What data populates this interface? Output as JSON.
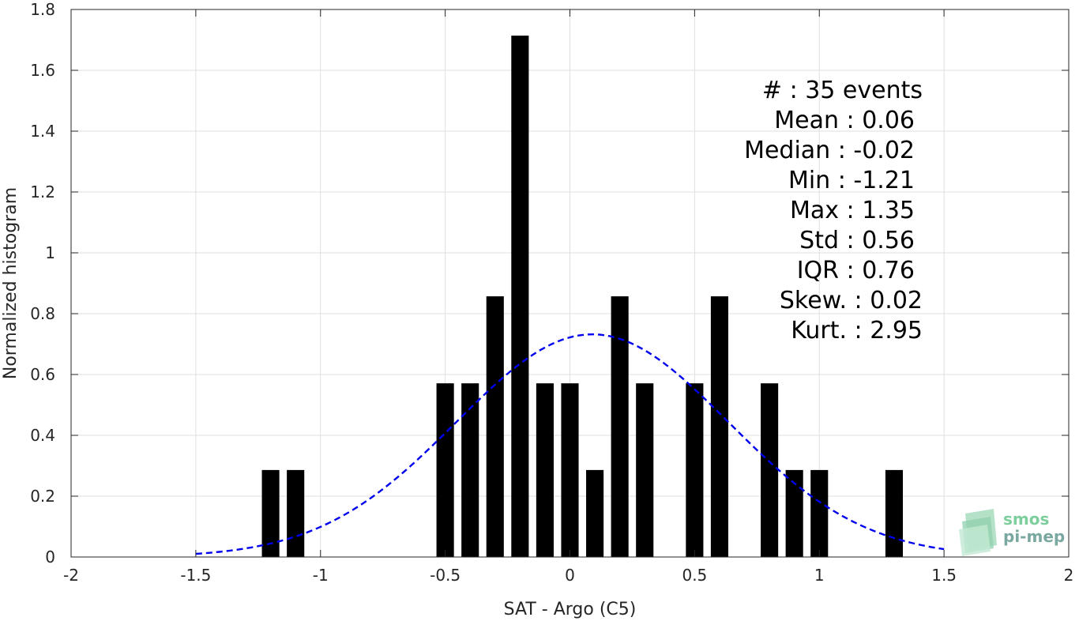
{
  "chart_data": {
    "type": "bar",
    "xlabel": "SAT - Argo (C5)",
    "ylabel": "Normalized histogram",
    "xlim": [
      -2,
      2
    ],
    "ylim": [
      0,
      1.8
    ],
    "xticks": [
      "-2",
      "-1.5",
      "-1",
      "-0.5",
      "0",
      "0.5",
      "1",
      "1.5",
      "2"
    ],
    "xtick_values": [
      -2,
      -1.5,
      -1,
      -0.5,
      0,
      0.5,
      1,
      1.5,
      2
    ],
    "yticks": [
      "0",
      "0.2",
      "0.4",
      "0.6",
      "0.8",
      "1",
      "1.2",
      "1.4",
      "1.6",
      "1.8"
    ],
    "ytick_values": [
      0,
      0.2,
      0.4,
      0.6,
      0.8,
      1,
      1.2,
      1.4,
      1.6,
      1.8
    ],
    "grid": true,
    "bar_color": "#000000",
    "bin_width": 0.07,
    "bars": [
      {
        "x": -1.2,
        "y": 0.286
      },
      {
        "x": -1.1,
        "y": 0.286
      },
      {
        "x": -0.5,
        "y": 0.571
      },
      {
        "x": -0.4,
        "y": 0.571
      },
      {
        "x": -0.3,
        "y": 0.857
      },
      {
        "x": -0.2,
        "y": 1.714
      },
      {
        "x": -0.1,
        "y": 0.571
      },
      {
        "x": 0.0,
        "y": 0.571
      },
      {
        "x": 0.1,
        "y": 0.286
      },
      {
        "x": 0.2,
        "y": 0.857
      },
      {
        "x": 0.3,
        "y": 0.571
      },
      {
        "x": 0.5,
        "y": 0.571
      },
      {
        "x": 0.6,
        "y": 0.857
      },
      {
        "x": 0.8,
        "y": 0.571
      },
      {
        "x": 0.9,
        "y": 0.286
      },
      {
        "x": 1.0,
        "y": 0.286
      },
      {
        "x": 1.3,
        "y": 0.286
      }
    ],
    "fit_curve": {
      "type": "normal",
      "mean": 0.09,
      "std": 0.545,
      "x_range": [
        -1.5,
        1.5
      ],
      "color": "#0000ee",
      "style": "dashed"
    },
    "stats": [
      "#  : 35 events",
      "Mean : 0.06",
      "Median : -0.02",
      "Min : -1.21",
      "Max : 1.35",
      "Std : 0.56",
      "IQR : 0.76",
      "Skew. : 0.02",
      "Kurt. : 2.95"
    ]
  },
  "logo": {
    "line1": "smos",
    "line2": "pi-mep",
    "color1": "#7ccf9c",
    "color2": "#7aa8a0"
  }
}
